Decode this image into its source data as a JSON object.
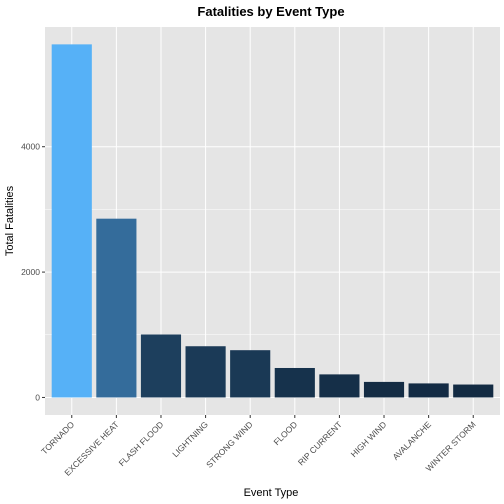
{
  "chart_data": {
    "type": "bar",
    "title": "Fatalities by Event Type",
    "xlabel": "Event Type",
    "ylabel": "Total Fatalities",
    "categories": [
      "TORNADO",
      "EXCESSIVE HEAT",
      "FLASH FLOOD",
      "LIGHTNING",
      "STRONG WIND",
      "FLOOD",
      "RIP CURRENT",
      "HIGH WIND",
      "AVALANCHE",
      "WINTER STORM"
    ],
    "values": [
      5633,
      2852,
      1004,
      817,
      754,
      470,
      368,
      248,
      224,
      206
    ],
    "yticks": [
      0,
      2000,
      4000
    ],
    "ylim": [
      -280,
      5910
    ],
    "grid": true,
    "legend": "none",
    "colors": {
      "panel_background": "#e5e5e5",
      "grid_major": "#ffffff",
      "bar_low": "#132b43",
      "bar_high": "#56b1f7"
    }
  }
}
